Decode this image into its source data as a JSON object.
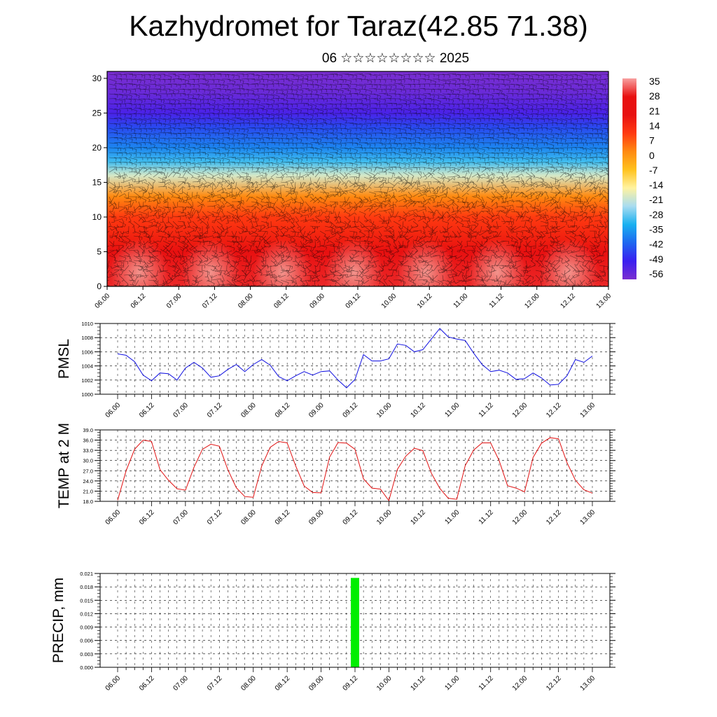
{
  "header": {
    "title": "Kazhydromet for Taraz(42.85 71.38)",
    "subtitle": "06 ☆☆☆☆☆☆☆☆ 2025"
  },
  "colors": {
    "pmsl_line": "#1010e0",
    "temp_line": "#e01010",
    "precip_bar": "#00ee00",
    "colorbar": [
      "#7a2ed0",
      "#3a1ef0",
      "#1e66f0",
      "#18b0f0",
      "#a8dcf0",
      "#fff3a0",
      "#ffc21e",
      "#ff8a10",
      "#ff3a10",
      "#e81010",
      "#f8a0a0"
    ]
  },
  "chart_data": [
    {
      "type": "heatmap",
      "title": "",
      "xlabel": "",
      "ylabel": "",
      "x_ticks": [
        "06.00",
        "06.12",
        "07.00",
        "07.12",
        "08.00",
        "08.12",
        "09.00",
        "09.12",
        "10.00",
        "10.12",
        "11.00",
        "11.12",
        "12.00",
        "12.12",
        "13.00"
      ],
      "y_ticks": [
        "0",
        "5",
        "10",
        "15",
        "20",
        "25",
        "30"
      ],
      "ylim": [
        0,
        31
      ],
      "colorbar_labels": [
        "35",
        "28",
        "21",
        "14",
        "7",
        "0",
        "-7",
        "-14",
        "-21",
        "-28",
        "-35",
        "-42",
        "-49",
        "-56"
      ],
      "overlay": "wind barbs",
      "temperature_profile": [
        {
          "level": 0,
          "value": 33
        },
        {
          "level": 5,
          "value": 27
        },
        {
          "level": 10,
          "value": 16
        },
        {
          "level": 13,
          "value": 7
        },
        {
          "level": 16,
          "value": -14
        },
        {
          "level": 18,
          "value": -25
        },
        {
          "level": 20,
          "value": -35
        },
        {
          "level": 23,
          "value": -45
        },
        {
          "level": 25,
          "value": -54
        },
        {
          "level": 28,
          "value": -58
        },
        {
          "level": 31,
          "value": -60
        }
      ]
    },
    {
      "type": "line",
      "title": "",
      "ylabel": "PMSL",
      "xlabel": "",
      "ylim": [
        1000,
        1010
      ],
      "y_ticks": [
        "1000",
        "1002",
        "1004",
        "1006",
        "1008",
        "1010"
      ],
      "x_ticks": [
        "06.00",
        "06.12",
        "07.00",
        "07.12",
        "08.00",
        "08.12",
        "09.00",
        "09.12",
        "10.00",
        "10.12",
        "11.00",
        "11.12",
        "12.00",
        "12.12",
        "13.00"
      ],
      "series": [
        {
          "values": [
            1005.7,
            1005.5,
            1004.6,
            1002.7,
            1001.9,
            1003.0,
            1002.9,
            1002.0,
            1003.7,
            1004.5,
            1003.7,
            1002.4,
            1002.6,
            1003.5,
            1004.2,
            1003.2,
            1004.2,
            1004.9,
            1004.1,
            1002.5,
            1001.9,
            1002.6,
            1003.2,
            1002.7,
            1003.2,
            1003.3,
            1002.0,
            1000.9,
            1002.1,
            1005.6,
            1004.7,
            1004.7,
            1005.0,
            1007.1,
            1006.9,
            1006.0,
            1006.3,
            1007.8,
            1009.3,
            1008.1,
            1007.8,
            1007.6,
            1005.8,
            1004.2,
            1003.2,
            1003.4,
            1003.0,
            1002.1,
            1002.2,
            1003.0,
            1002.3,
            1001.3,
            1001.4,
            1002.6,
            1004.9,
            1004.5,
            1005.4
          ]
        }
      ]
    },
    {
      "type": "line",
      "title": "",
      "ylabel": "TEMP at 2 M",
      "xlabel": "",
      "ylim": [
        18,
        39
      ],
      "y_ticks": [
        "18.0",
        "21.0",
        "24.0",
        "27.0",
        "30.0",
        "33.0",
        "36.0",
        "39.0"
      ],
      "x_ticks": [
        "06.00",
        "06.12",
        "07.00",
        "07.12",
        "08.00",
        "08.12",
        "09.00",
        "09.12",
        "10.00",
        "10.12",
        "11.00",
        "11.12",
        "12.00",
        "12.12",
        "13.00"
      ],
      "series": [
        {
          "values": [
            18.3,
            27.0,
            33.3,
            36.0,
            35.6,
            27.3,
            24.2,
            21.7,
            21.3,
            28.0,
            33.3,
            34.8,
            34.2,
            27.3,
            22.0,
            19.4,
            19.2,
            28.4,
            33.9,
            35.6,
            35.2,
            28.4,
            22.5,
            20.6,
            20.5,
            31.0,
            35.3,
            35.1,
            33.3,
            24.6,
            21.9,
            21.6,
            18.2,
            27.4,
            31.3,
            33.6,
            32.9,
            26.3,
            21.8,
            18.9,
            18.6,
            28.5,
            33.1,
            35.2,
            35.2,
            30.0,
            22.6,
            21.9,
            20.8,
            30.9,
            35.1,
            36.7,
            36.4,
            29.4,
            24.2,
            21.4,
            20.4
          ]
        }
      ]
    },
    {
      "type": "bar",
      "title": "",
      "ylabel": "PRECIP, mm",
      "xlabel": "",
      "ylim": [
        0,
        0.021
      ],
      "y_ticks": [
        "0.000",
        "0.003",
        "0.006",
        "0.009",
        "0.012",
        "0.015",
        "0.018",
        "0.021"
      ],
      "x_ticks": [
        "06.00",
        "06.12",
        "07.00",
        "07.12",
        "08.00",
        "08.12",
        "09.00",
        "09.12",
        "10.00",
        "10.12",
        "11.00",
        "11.12",
        "12.00",
        "12.12",
        "13.00"
      ],
      "bars": [
        {
          "x": "09.12",
          "value": 0.02
        }
      ]
    }
  ]
}
